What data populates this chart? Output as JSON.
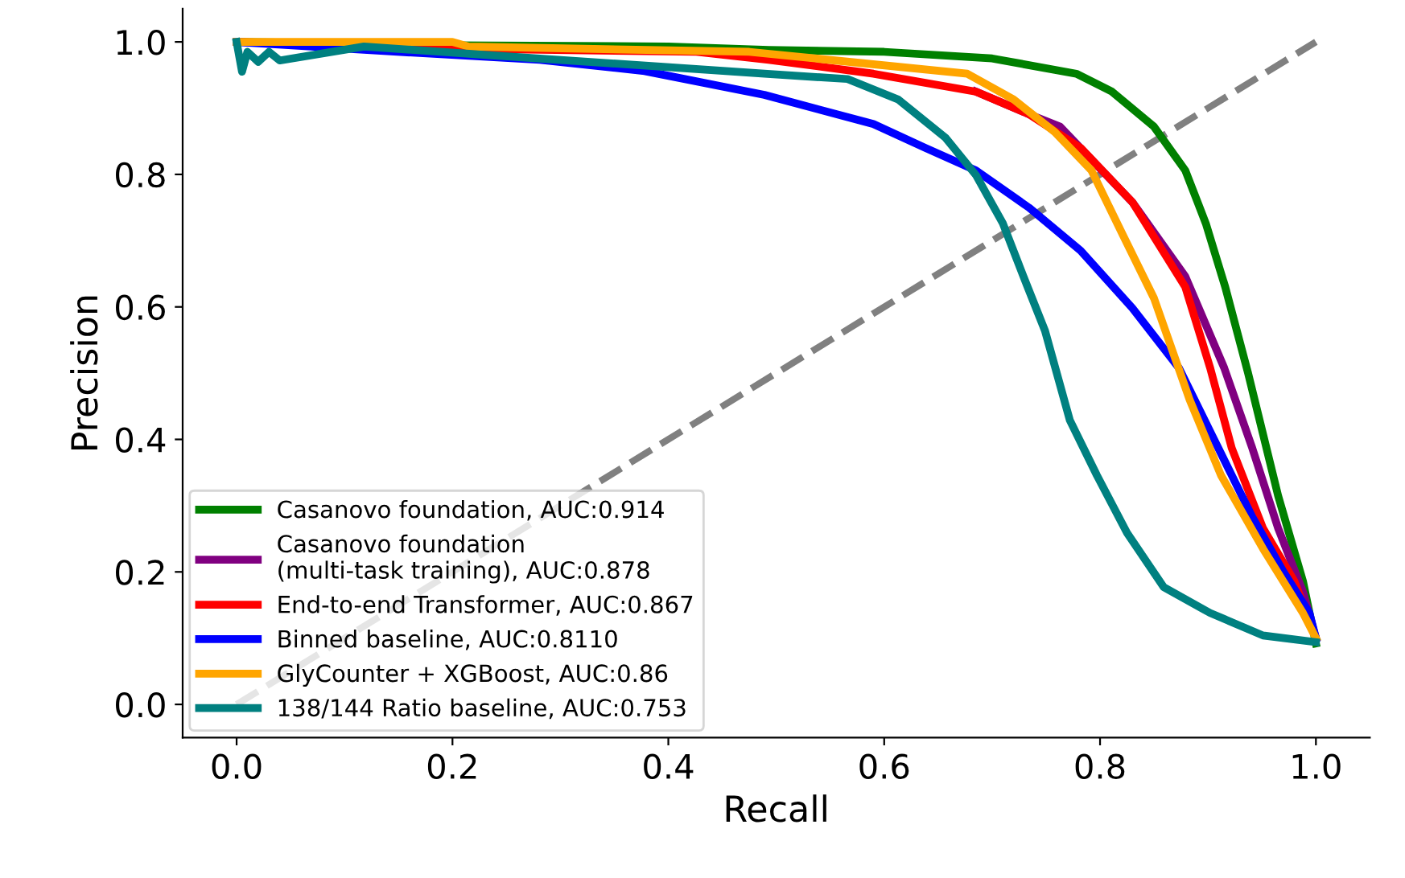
{
  "chart_data": {
    "type": "line",
    "xlabel": "Recall",
    "ylabel": "Precision",
    "xlim": [
      -0.05,
      1.05
    ],
    "ylim": [
      -0.05,
      1.05
    ],
    "xticks": [
      {
        "value": 0,
        "label": "0.0"
      },
      {
        "value": 0.2,
        "label": "0.2"
      },
      {
        "value": 0.4,
        "label": "0.4"
      },
      {
        "value": 0.6,
        "label": "0.6"
      },
      {
        "value": 0.8,
        "label": "0.8"
      },
      {
        "value": 1,
        "label": "1.0"
      }
    ],
    "yticks": [
      {
        "value": 0,
        "label": "0.0"
      },
      {
        "value": 0.2,
        "label": "0.2"
      },
      {
        "value": 0.4,
        "label": "0.4"
      },
      {
        "value": 0.6,
        "label": "0.6"
      },
      {
        "value": 0.8,
        "label": "0.8"
      },
      {
        "value": 1,
        "label": "1.0"
      }
    ],
    "grid": false,
    "legend": "bottom left",
    "marker": "none",
    "series": [
      {
        "name": "Casanovo foundation, AUC:0.914",
        "color": "#008000",
        "x": [
          0,
          0.2,
          0.4,
          0.493,
          0.6,
          0.7,
          0.778,
          0.811,
          0.85,
          0.879,
          0.898,
          0.916,
          0.937,
          0.965,
          0.988,
          1.0
        ],
        "values": [
          1.0,
          0.995,
          0.993,
          0.988,
          0.985,
          0.975,
          0.952,
          0.925,
          0.872,
          0.806,
          0.726,
          0.63,
          0.501,
          0.315,
          0.186,
          0.092
        ]
      },
      {
        "name": "Casanovo foundation\n(multi-task training), AUC:0.878",
        "color": "#800080",
        "x": [
          0.685,
          0.734,
          0.763,
          0.83,
          0.879,
          0.915,
          0.941,
          0.965,
          0.988,
          1.0
        ],
        "values": [
          0.925,
          0.891,
          0.872,
          0.758,
          0.646,
          0.508,
          0.387,
          0.266,
          0.17,
          0.1
        ]
      },
      {
        "name": "End-to-end Transformer, AUC:0.867",
        "color": "#ff0000",
        "x": [
          0,
          0.2,
          0.426,
          0.493,
          0.59,
          0.685,
          0.734,
          0.782,
          0.83,
          0.879,
          0.902,
          0.922,
          0.951,
          0.98,
          1.0
        ],
        "values": [
          1.0,
          0.99,
          0.985,
          0.973,
          0.952,
          0.925,
          0.891,
          0.84,
          0.758,
          0.63,
          0.508,
          0.387,
          0.266,
          0.186,
          0.1
        ]
      },
      {
        "name": "Binned baseline, AUC:0.8110",
        "color": "#0000ff",
        "x": [
          0,
          0.118,
          0.281,
          0.378,
          0.489,
          0.59,
          0.638,
          0.685,
          0.734,
          0.782,
          0.83,
          0.873,
          0.902,
          0.941,
          0.97,
          0.994,
          1.0
        ],
        "values": [
          1.0,
          0.988,
          0.973,
          0.956,
          0.92,
          0.876,
          0.84,
          0.806,
          0.75,
          0.685,
          0.598,
          0.508,
          0.412,
          0.283,
          0.2,
          0.138,
          0.1
        ]
      },
      {
        "name": "GlyCounter + XGBoost, AUC:0.86",
        "color": "#ffa500",
        "x": [
          0,
          0.2,
          0.215,
          0.475,
          0.677,
          0.72,
          0.758,
          0.792,
          0.821,
          0.85,
          0.883,
          0.912,
          0.951,
          0.988,
          1.0
        ],
        "values": [
          1.0,
          1.0,
          0.993,
          0.985,
          0.952,
          0.913,
          0.864,
          0.806,
          0.709,
          0.613,
          0.46,
          0.346,
          0.235,
          0.138,
          0.1
        ]
      },
      {
        "name": "138/144 Ratio baseline, AUC:0.753",
        "color": "#008080",
        "x": [
          0,
          0.005,
          0.01,
          0.02,
          0.03,
          0.04,
          0.118,
          0.234,
          0.489,
          0.566,
          0.613,
          0.657,
          0.685,
          0.71,
          0.729,
          0.749,
          0.772,
          0.797,
          0.825,
          0.859,
          0.902,
          0.951,
          1.0
        ],
        "values": [
          1.0,
          0.955,
          0.985,
          0.97,
          0.985,
          0.972,
          0.993,
          0.98,
          0.952,
          0.944,
          0.913,
          0.855,
          0.799,
          0.726,
          0.646,
          0.564,
          0.429,
          0.346,
          0.259,
          0.177,
          0.138,
          0.104,
          0.094
        ]
      },
      {
        "color": "#808080",
        "line_style": "dashed",
        "x": [
          0,
          1
        ],
        "values": [
          0,
          1
        ]
      }
    ]
  }
}
